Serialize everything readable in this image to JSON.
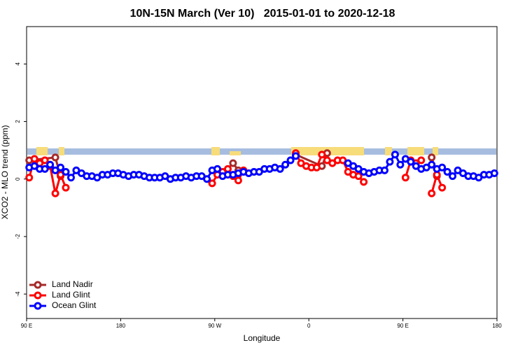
{
  "chart_data": {
    "type": "line",
    "title": "10N-15N March (Ver 10)   2015-01-01 to 2020-12-18",
    "x_label": "Longitude",
    "y_label": "XCO2 - MLO trend (ppm)",
    "xlim": [
      90,
      540
    ],
    "ylim": [
      -4.85,
      5.3
    ],
    "xticks": [
      {
        "value": 90,
        "label": "90 E"
      },
      180,
      {
        "value": 270,
        "label": "90 W"
      },
      {
        "value": 360,
        "label": "0"
      },
      {
        "value": 450,
        "label": "90 E"
      },
      {
        "value": 540,
        "label": "180"
      }
    ],
    "yticks": [
      -4,
      -2,
      0,
      2,
      4
    ],
    "legend_position": "bottomleft",
    "series": [
      {
        "name": "Land Nadir",
        "color": "#a52a2a",
        "x": [
          92.5,
          117.5,
          122.5,
          200,
          277.5,
          287.5,
          292.5,
          320,
          347.5,
          372.5,
          377.5,
          430,
          477.5,
          482.5
        ],
        "values": [
          0.65,
          0.75,
          0.1,
          null,
          0.15,
          0.55,
          0.3,
          null,
          0.85,
          0.45,
          0.9,
          null,
          0.75,
          0.1
        ]
      },
      {
        "name": "Land Glint",
        "color": "#ff0000",
        "x": [
          92.5,
          97.5,
          102.5,
          107.5,
          112.5,
          117.5,
          122.5,
          127.5,
          200,
          267.5,
          272.5,
          277.5,
          282.5,
          287.5,
          292.5,
          297.5,
          320,
          347.5,
          352.5,
          357.5,
          362.5,
          367.5,
          372.5,
          377.5,
          382.5,
          387.5,
          392.5,
          397.5,
          402.5,
          407.5,
          412.5,
          430,
          452.5,
          457.5,
          462.5,
          467.5,
          472.5,
          477.5,
          482.5,
          487.5
        ],
        "values": [
          0.05,
          0.7,
          0.55,
          0.65,
          0.45,
          -0.5,
          0.15,
          -0.3,
          null,
          -0.15,
          0.15,
          0.25,
          0.35,
          0.1,
          -0.05,
          0.3,
          null,
          0.9,
          0.55,
          0.45,
          0.4,
          0.4,
          0.85,
          0.65,
          0.55,
          0.65,
          0.65,
          0.25,
          0.15,
          0.1,
          -0.1,
          null,
          0.05,
          0.65,
          0.55,
          0.65,
          null,
          -0.5,
          0.15,
          -0.3
        ]
      },
      {
        "name": "Ocean Glint",
        "color": "#0000ff",
        "x": [
          92.5,
          97.5,
          102.5,
          107.5,
          112.5,
          117.5,
          122.5,
          127.5,
          132.5,
          137.5,
          142.5,
          147.5,
          152.5,
          157.5,
          162.5,
          167.5,
          172.5,
          177.5,
          182.5,
          187.5,
          192.5,
          197.5,
          202.5,
          207.5,
          212.5,
          217.5,
          222.5,
          227.5,
          232.5,
          237.5,
          242.5,
          247.5,
          252.5,
          257.5,
          262.5,
          267.5,
          272.5,
          277.5,
          282.5,
          287.5,
          292.5,
          297.5,
          302.5,
          307.5,
          312.5,
          317.5,
          322.5,
          327.5,
          332.5,
          337.5,
          342.5,
          347.5,
          372.5,
          397.5,
          402.5,
          407.5,
          412.5,
          417.5,
          422.5,
          427.5,
          432.5,
          437.5,
          442.5,
          447.5,
          452.5,
          457.5,
          462.5,
          467.5,
          472.5,
          477.5,
          482.5,
          487.5,
          492.5,
          497.5,
          502.5,
          507.5,
          512.5,
          517.5,
          522.5,
          527.5,
          532.5,
          537.5
        ],
        "values": [
          0.4,
          0.45,
          0.35,
          0.35,
          0.5,
          0.3,
          0.4,
          0.25,
          0.05,
          0.3,
          0.2,
          0.1,
          0.1,
          0.05,
          0.15,
          0.15,
          0.2,
          0.2,
          0.15,
          0.1,
          0.15,
          0.15,
          0.1,
          0.05,
          0.05,
          0.05,
          0.1,
          0,
          0.05,
          0.05,
          0.1,
          0.05,
          0.1,
          0.1,
          0,
          0.3,
          0.35,
          0.1,
          0.15,
          0.15,
          0.2,
          0.25,
          0.2,
          0.25,
          0.25,
          0.35,
          0.35,
          0.4,
          0.35,
          0.5,
          0.65,
          0.8,
          null,
          0.55,
          0.45,
          0.35,
          0.25,
          0.2,
          0.25,
          0.3,
          0.3,
          0.6,
          0.85,
          0.5,
          0.7,
          0.6,
          0.45,
          0.35,
          0.4,
          0.5,
          0.35,
          0.4,
          0.25,
          0.1,
          0.3,
          0.2,
          0.1,
          0.1,
          0.05,
          0.15,
          0.15,
          0.2
        ]
      }
    ]
  }
}
